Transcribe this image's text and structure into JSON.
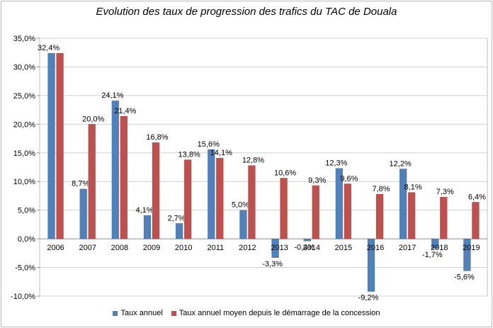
{
  "chart_data": {
    "type": "bar",
    "title": "Evolution des taux de progression des trafics du TAC de Douala",
    "categories": [
      "2006",
      "2007",
      "2008",
      "2009",
      "2010",
      "2011",
      "2012",
      "2013",
      "2014",
      "2015",
      "2016",
      "2017",
      "2018",
      "2019"
    ],
    "series": [
      {
        "name": "Taux annuel",
        "color": "#4f81bd",
        "values": [
          32.4,
          8.7,
          24.1,
          4.1,
          2.7,
          15.6,
          5.0,
          -3.3,
          -0.4,
          12.3,
          -9.2,
          12.2,
          -1.7,
          -5.6
        ],
        "labels": [
          "32,4%",
          "8,7%",
          "24,1%",
          "4,1%",
          "2,7%",
          "15,6%",
          "5,0%",
          "-3,3%",
          "-0,4%",
          "12,3%",
          "-9,2%",
          "12,2%",
          "-1,7%",
          "-5,6%"
        ]
      },
      {
        "name": "Taux  annuel moyen depuis le démarrage de la concession",
        "color": "#c0504d",
        "values": [
          32.4,
          20.0,
          21.4,
          16.8,
          13.8,
          14.1,
          12.8,
          10.6,
          9.3,
          9.6,
          7.8,
          8.1,
          7.3,
          6.4
        ],
        "labels": [
          "",
          "20,0%",
          "21,4%",
          "16,8%",
          "13,8%",
          "14,1%",
          "12,8%",
          "10,6%",
          "9,3%",
          "9,6%",
          "7,8%",
          "8,1%",
          "7,3%",
          "6,4%"
        ]
      }
    ],
    "ylim": [
      -10,
      35
    ],
    "yticks": [
      -10,
      -5,
      0,
      5,
      10,
      15,
      20,
      25,
      30,
      35
    ],
    "ytick_labels": [
      "-10,0%",
      "-5,0%",
      "0,0%",
      "5,0%",
      "10,0%",
      "15,0%",
      "20,0%",
      "25,0%",
      "30,0%",
      "35,0%"
    ],
    "grid": true,
    "legend_position": "bottom"
  }
}
